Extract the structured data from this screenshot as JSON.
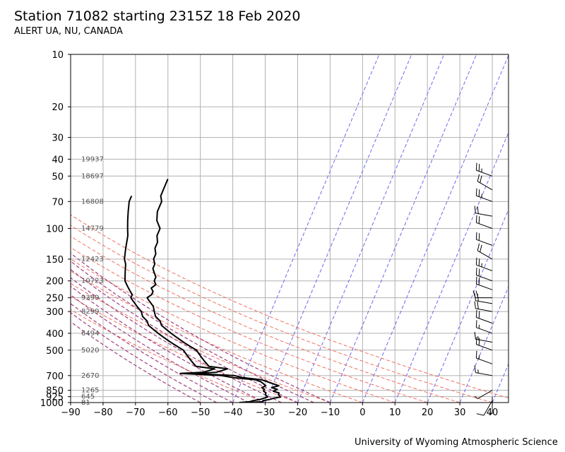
{
  "header": {
    "title": "Station 71082 starting 2315Z 18 Feb 2020",
    "subtitle": "ALERT UA, NU, CANADA"
  },
  "footer": {
    "credit": "University of Wyoming Atmospheric Science"
  },
  "colors": {
    "grid": "#b0b0b0",
    "isotherm": "#6a6af0",
    "dry_adiabat": "#f07060",
    "moist_adiabat": "#a04080",
    "sounding": "#000000",
    "height_label": "#555555"
  },
  "chart_data": {
    "type": "skew-t",
    "xlim": [
      -90,
      45
    ],
    "ylim_hpa": [
      1000,
      10
    ],
    "y_scale": "log",
    "grid": true,
    "x_ticks": [
      -90,
      -80,
      -70,
      -60,
      -50,
      -40,
      -30,
      -20,
      -10,
      0,
      10,
      20,
      30,
      40
    ],
    "x_tick_labels": [
      "−90",
      "−80",
      "−70",
      "−60",
      "−50",
      "−40",
      "−30",
      "−20",
      "−10",
      "0",
      "10",
      "20",
      "30",
      "40"
    ],
    "y_ticks": [
      10,
      20,
      30,
      40,
      50,
      70,
      100,
      150,
      200,
      250,
      300,
      400,
      500,
      700,
      850,
      925,
      1000
    ],
    "y_tick_labels": [
      "10",
      "20",
      "30",
      "40",
      "50",
      "70",
      "100",
      "150",
      "200",
      "250",
      "300",
      "400",
      "500",
      "700",
      "850",
      "925",
      "1000"
    ],
    "isotherms": [
      -40,
      -30,
      -20,
      -10,
      0,
      10,
      20,
      30,
      40
    ],
    "dry_adiabats_surface_t": [
      -30,
      -20,
      -10,
      0,
      10,
      20,
      30,
      40,
      50
    ],
    "moist_adiabats_surface_t": [
      -50,
      -45,
      -40,
      -35,
      -30,
      -25,
      -20,
      -15,
      -10
    ],
    "height_labels": [
      {
        "p": 1000,
        "text": "81"
      },
      {
        "p": 925,
        "text": "645"
      },
      {
        "p": 850,
        "text": "1265"
      },
      {
        "p": 700,
        "text": "2670"
      },
      {
        "p": 500,
        "text": "5020"
      },
      {
        "p": 400,
        "text": "6494"
      },
      {
        "p": 300,
        "text": "8299"
      },
      {
        "p": 250,
        "text": "9399"
      },
      {
        "p": 200,
        "text": "10723"
      },
      {
        "p": 150,
        "text": "12423"
      },
      {
        "p": 100,
        "text": "14779"
      },
      {
        "p": 70,
        "text": "16808"
      },
      {
        "p": 50,
        "text": "18697"
      },
      {
        "p": 40,
        "text": "19937"
      }
    ],
    "temperature_profile": [
      [
        1000,
        -36
      ],
      [
        990,
        -31
      ],
      [
        975,
        -31
      ],
      [
        960,
        -29
      ],
      [
        945,
        -28
      ],
      [
        930,
        -26
      ],
      [
        900,
        -27
      ],
      [
        880,
        -27
      ],
      [
        860,
        -29
      ],
      [
        840,
        -28
      ],
      [
        820,
        -30
      ],
      [
        800,
        -28
      ],
      [
        780,
        -30
      ],
      [
        760,
        -32
      ],
      [
        740,
        -34
      ],
      [
        720,
        -40
      ],
      [
        700,
        -43
      ],
      [
        690,
        -50
      ],
      [
        680,
        -55
      ],
      [
        670,
        -49
      ],
      [
        660,
        -48
      ],
      [
        650,
        -47
      ],
      [
        640,
        -46
      ],
      [
        620,
        -52
      ],
      [
        600,
        -53
      ],
      [
        580,
        -54
      ],
      [
        560,
        -55
      ],
      [
        540,
        -56
      ],
      [
        520,
        -57
      ],
      [
        500,
        -58
      ],
      [
        480,
        -60
      ],
      [
        460,
        -62
      ],
      [
        440,
        -64
      ],
      [
        420,
        -66
      ],
      [
        400,
        -68
      ],
      [
        380,
        -70
      ],
      [
        360,
        -72
      ],
      [
        340,
        -73
      ],
      [
        320,
        -75
      ],
      [
        300,
        -76
      ],
      [
        280,
        -77
      ],
      [
        260,
        -79
      ],
      [
        250,
        -80
      ],
      [
        240,
        -79
      ],
      [
        230,
        -79
      ],
      [
        220,
        -80
      ],
      [
        210,
        -79
      ],
      [
        200,
        -80
      ],
      [
        190,
        -80
      ],
      [
        180,
        -81
      ],
      [
        170,
        -82
      ],
      [
        160,
        -82
      ],
      [
        150,
        -83
      ],
      [
        140,
        -83
      ],
      [
        130,
        -84
      ],
      [
        120,
        -84
      ],
      [
        110,
        -85
      ],
      [
        100,
        -85
      ],
      [
        90,
        -87
      ],
      [
        80,
        -88
      ],
      [
        75,
        -88
      ],
      [
        70,
        -88
      ],
      [
        65,
        -89
      ],
      [
        60,
        -89
      ],
      [
        55,
        -89
      ],
      [
        52,
        -89
      ]
    ],
    "dewpoint_profile": [
      [
        1000,
        -38
      ],
      [
        990,
        -35
      ],
      [
        975,
        -34
      ],
      [
        960,
        -32
      ],
      [
        945,
        -31
      ],
      [
        930,
        -30
      ],
      [
        900,
        -31
      ],
      [
        880,
        -31
      ],
      [
        860,
        -32
      ],
      [
        840,
        -32
      ],
      [
        820,
        -33
      ],
      [
        800,
        -32
      ],
      [
        780,
        -33
      ],
      [
        760,
        -34
      ],
      [
        740,
        -36
      ],
      [
        720,
        -43
      ],
      [
        700,
        -47
      ],
      [
        690,
        -53
      ],
      [
        680,
        -60
      ],
      [
        670,
        -53
      ],
      [
        660,
        -52
      ],
      [
        650,
        -51
      ],
      [
        640,
        -50
      ],
      [
        620,
        -56
      ],
      [
        600,
        -57
      ],
      [
        580,
        -58
      ],
      [
        560,
        -59
      ],
      [
        540,
        -60
      ],
      [
        520,
        -61
      ],
      [
        500,
        -62
      ],
      [
        480,
        -64
      ],
      [
        460,
        -66
      ],
      [
        440,
        -68
      ],
      [
        420,
        -70
      ],
      [
        400,
        -72
      ],
      [
        380,
        -74
      ],
      [
        360,
        -76
      ],
      [
        340,
        -77
      ],
      [
        320,
        -79
      ],
      [
        300,
        -80
      ],
      [
        280,
        -82
      ],
      [
        260,
        -84
      ],
      [
        250,
        -85
      ],
      [
        240,
        -85
      ],
      [
        230,
        -86
      ],
      [
        220,
        -87
      ],
      [
        210,
        -88
      ],
      [
        200,
        -89
      ],
      [
        180,
        -90
      ],
      [
        160,
        -91
      ],
      [
        150,
        -92
      ],
      [
        130,
        -93
      ],
      [
        110,
        -94
      ],
      [
        100,
        -95
      ],
      [
        90,
        -96
      ],
      [
        80,
        -97
      ],
      [
        70,
        -98
      ],
      [
        65,
        -98
      ]
    ],
    "wind_barbs": [
      {
        "p": 975,
        "dir": 210,
        "spd": 10
      },
      {
        "p": 925,
        "dir": 180,
        "spd": 5
      },
      {
        "p": 850,
        "dir": 240,
        "spd": 5
      },
      {
        "p": 700,
        "dir": 280,
        "spd": 15
      },
      {
        "p": 600,
        "dir": 290,
        "spd": 15
      },
      {
        "p": 500,
        "dir": 290,
        "spd": 20
      },
      {
        "p": 450,
        "dir": 280,
        "spd": 15
      },
      {
        "p": 400,
        "dir": 290,
        "spd": 15
      },
      {
        "p": 350,
        "dir": 290,
        "spd": 20
      },
      {
        "p": 300,
        "dir": 280,
        "spd": 20
      },
      {
        "p": 270,
        "dir": 280,
        "spd": 20
      },
      {
        "p": 250,
        "dir": 270,
        "spd": 20
      },
      {
        "p": 225,
        "dir": 290,
        "spd": 20
      },
      {
        "p": 200,
        "dir": 290,
        "spd": 20
      },
      {
        "p": 175,
        "dir": 290,
        "spd": 25
      },
      {
        "p": 150,
        "dir": 300,
        "spd": 20
      },
      {
        "p": 125,
        "dir": 290,
        "spd": 20
      },
      {
        "p": 100,
        "dir": 290,
        "spd": 20
      },
      {
        "p": 85,
        "dir": 280,
        "spd": 20
      },
      {
        "p": 70,
        "dir": 290,
        "spd": 25
      },
      {
        "p": 60,
        "dir": 300,
        "spd": 20
      },
      {
        "p": 50,
        "dir": 290,
        "spd": 25
      }
    ]
  }
}
